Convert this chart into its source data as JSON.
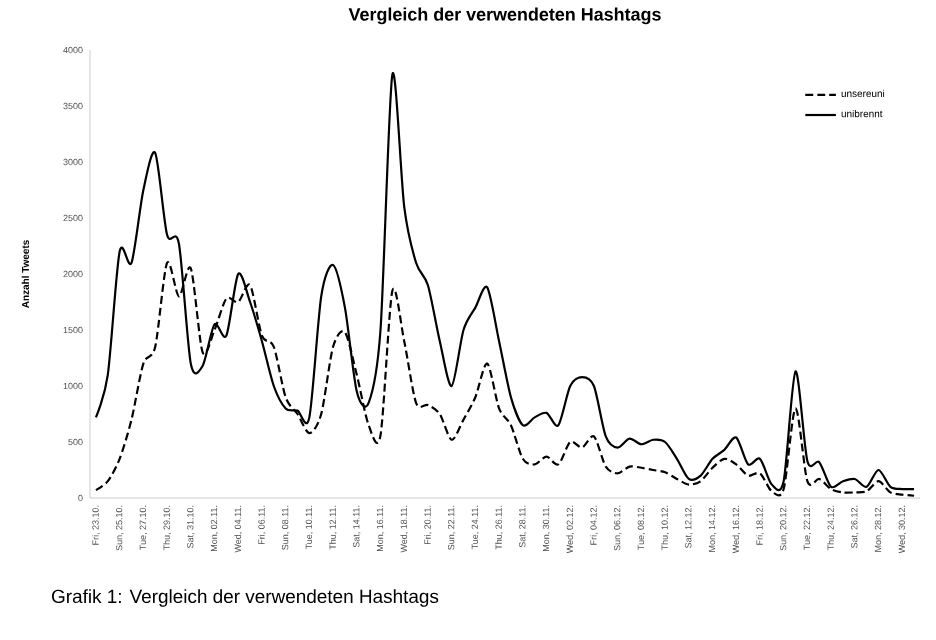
{
  "chart_data": {
    "type": "line",
    "title": "Vergleich der verwendeten Hashtags",
    "ylabel": "Anzahl Tweets",
    "categories": [
      "Fri, 23.10.",
      null,
      "Sun, 25.10.",
      null,
      "Tue, 27.10.",
      null,
      "Thu, 29.10.",
      null,
      "Sat, 31.10.",
      null,
      "Mon, 02.11.",
      null,
      "Wed, 04.11.",
      null,
      "Fri, 06.11.",
      null,
      "Sun, 08.11.",
      null,
      "Tue, 10.11.",
      null,
      "Thu, 12.11.",
      null,
      "Sat, 14.11.",
      null,
      "Mon, 16.11.",
      null,
      "Wed, 18.11.",
      null,
      "Fri, 20.11.",
      null,
      "Sun, 22.11.",
      null,
      "Tue, 24.11.",
      null,
      "Thu, 26.11.",
      null,
      "Sat, 28.11.",
      null,
      "Mon, 30.11.",
      null,
      "Wed, 02.12.",
      null,
      "Fri, 04.12.",
      null,
      "Sun, 06.12.",
      null,
      "Tue, 08.12.",
      null,
      "Thu, 10.12.",
      null,
      "Sat, 12.12.",
      null,
      "Mon, 14.12.",
      null,
      "Wed, 16.12.",
      null,
      "Fri, 18.12.",
      null,
      "Sun, 20.12.",
      null,
      "Tue, 22.12.",
      null,
      "Thu, 24.12.",
      null,
      "Sat, 26.12.",
      null,
      "Mon, 28.12.",
      null,
      "Wed, 30.12.",
      null
    ],
    "series": [
      {
        "name": "unsereuni",
        "color": "#000000",
        "line_style": "dashed",
        "values": [
          70,
          150,
          350,
          700,
          1200,
          1350,
          2100,
          1800,
          2050,
          1300,
          1500,
          1780,
          1750,
          1900,
          1450,
          1350,
          900,
          750,
          580,
          750,
          1350,
          1480,
          1100,
          650,
          560,
          1850,
          1400,
          850,
          830,
          750,
          520,
          700,
          900,
          1200,
          800,
          650,
          350,
          300,
          370,
          300,
          500,
          450,
          550,
          280,
          220,
          280,
          270,
          250,
          230,
          170,
          120,
          150,
          270,
          350,
          300,
          200,
          220,
          60,
          80,
          800,
          150,
          170,
          80,
          50,
          50,
          60,
          150,
          50,
          30,
          20
        ]
      },
      {
        "name": "unibrennt",
        "color": "#000000",
        "line_style": "solid",
        "values": [
          720,
          1100,
          2200,
          2100,
          2750,
          3080,
          2350,
          2270,
          1200,
          1180,
          1550,
          1450,
          2000,
          1750,
          1400,
          1000,
          800,
          780,
          720,
          1800,
          2080,
          1700,
          950,
          850,
          1500,
          3780,
          2600,
          2100,
          1900,
          1400,
          1000,
          1500,
          1700,
          1880,
          1400,
          900,
          650,
          720,
          760,
          650,
          1000,
          1080,
          1000,
          550,
          450,
          530,
          480,
          520,
          500,
          350,
          170,
          200,
          350,
          430,
          540,
          300,
          350,
          120,
          150,
          1130,
          330,
          320,
          100,
          150,
          170,
          100,
          250,
          100,
          80,
          80
        ]
      }
    ],
    "ylim": [
      0,
      4000
    ],
    "yticks": [
      0,
      500,
      1000,
      1500,
      2000,
      2500,
      3000,
      3500,
      4000
    ],
    "legend": "top right",
    "grid": false,
    "annotations": [
      "Grafik 1: Vergleich der verwendeten Hashtags"
    ]
  }
}
